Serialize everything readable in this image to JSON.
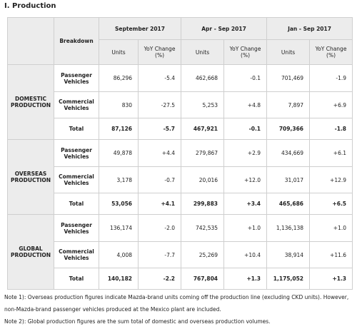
{
  "header": {
    "title": "I. Production"
  },
  "table": {
    "breakdown": "Breakdown",
    "periods": [
      {
        "label": "September 2017",
        "units": "Units",
        "yoy": "YoY Change (%)"
      },
      {
        "label": "Apr - Sep 2017",
        "units": "Units",
        "yoy": "YoY Change (%)"
      },
      {
        "label": "Jan - Sep 2017",
        "units": "Units",
        "yoy": "YoY Change (%)"
      }
    ],
    "groups": [
      {
        "label": "DOMESTIC PRODUCTION",
        "rows": [
          {
            "label": "Passenger Vehicles",
            "cells": [
              "86,296",
              "-5.4",
              "462,668",
              "-0.1",
              "701,469",
              "-1.9"
            ]
          },
          {
            "label": "Commercial Vehicles",
            "cells": [
              "830",
              "-27.5",
              "5,253",
              "+4.8",
              "7,897",
              "+6.9"
            ]
          },
          {
            "label": "Total",
            "cells": [
              "87,126",
              "-5.7",
              "467,921",
              "-0.1",
              "709,366",
              "-1.8"
            ]
          }
        ]
      },
      {
        "label": "OVERSEAS PRODUCTION",
        "rows": [
          {
            "label": "Passenger Vehicles",
            "cells": [
              "49,878",
              "+4.4",
              "279,867",
              "+2.9",
              "434,669",
              "+6.1"
            ]
          },
          {
            "label": "Commercial Vehicles",
            "cells": [
              "3,178",
              "-0.7",
              "20,016",
              "+12.0",
              "31,017",
              "+12.9"
            ]
          },
          {
            "label": "Total",
            "cells": [
              "53,056",
              "+4.1",
              "299,883",
              "+3.4",
              "465,686",
              "+6.5"
            ]
          }
        ]
      },
      {
        "label": "GLOBAL PRODUCTION",
        "rows": [
          {
            "label": "Passenger Vehicles",
            "cells": [
              "136,174",
              "-2.0",
              "742,535",
              "+1.0",
              "1,136,138",
              "+1.0"
            ]
          },
          {
            "label": "Commercial Vehicles",
            "cells": [
              "4,008",
              "-7.7",
              "25,269",
              "+10.4",
              "38,914",
              "+11.6"
            ]
          },
          {
            "label": "Total",
            "cells": [
              "140,182",
              "-2.2",
              "767,804",
              "+1.3",
              "1,175,052",
              "+1.3"
            ]
          }
        ]
      }
    ]
  },
  "notes": [
    "Note 1): Overseas production figures indicate Mazda-brand units coming off the production line (excluding CKD units). However,",
    "non-Mazda-brand passenger vehicles produced at the Mexico plant are included.",
    "Note 2): Global production figures are the sum total of domestic and overseas production volumes."
  ]
}
